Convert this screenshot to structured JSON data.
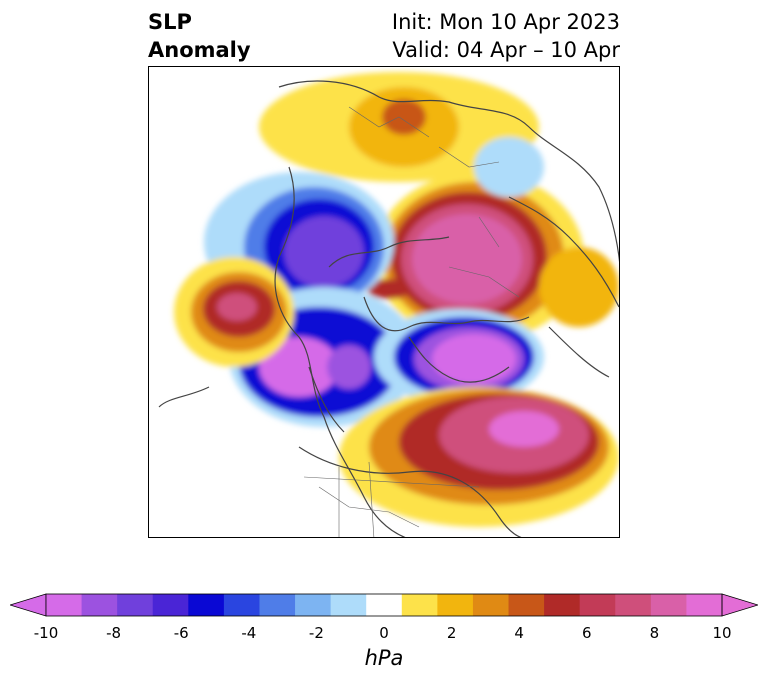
{
  "title": {
    "variable_line1": "SLP",
    "variable_line2": "Anomaly",
    "init": "Init: Mon 10 Apr 2023",
    "valid": "Valid: 04 Apr – 10 Apr"
  },
  "colorbar": {
    "unit": "hPa",
    "tick_labels": [
      "-10",
      "-8",
      "-6",
      "-4",
      "-2",
      "0",
      "2",
      "4",
      "6",
      "8",
      "10"
    ],
    "min": -10,
    "max": 10,
    "extend": "both",
    "levels": [
      -10,
      -9,
      -8,
      -7,
      -6,
      -5,
      -4,
      -3,
      -2,
      -1,
      1,
      2,
      3,
      4,
      5,
      6,
      7,
      8,
      9,
      10
    ],
    "colors": [
      "#d56be8",
      "#9c52e0",
      "#7040dc",
      "#4a25d6",
      "#0a08d4",
      "#2a45e0",
      "#4f7de8",
      "#7db4f2",
      "#aedcfa",
      "#ffffff",
      "#fde24a",
      "#f2b50e",
      "#e08a14",
      "#c85718",
      "#b02a28",
      "#c23b57",
      "#cf4f7b",
      "#d960a8",
      "#e36dd6"
    ]
  }
}
